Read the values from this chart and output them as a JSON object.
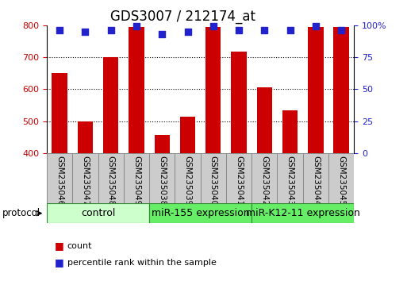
{
  "title": "GDS3007 / 212174_at",
  "samples": [
    "GSM235046",
    "GSM235047",
    "GSM235048",
    "GSM235049",
    "GSM235038",
    "GSM235039",
    "GSM235040",
    "GSM235041",
    "GSM235042",
    "GSM235043",
    "GSM235044",
    "GSM235045"
  ],
  "counts": [
    650,
    500,
    700,
    795,
    458,
    515,
    795,
    718,
    605,
    535,
    795,
    795
  ],
  "percentile_ranks": [
    96,
    95,
    96,
    99,
    93,
    95,
    99,
    96,
    96,
    96,
    99,
    96
  ],
  "groups": [
    {
      "label": "control",
      "start": 0,
      "end": 4,
      "color": "#ccffcc"
    },
    {
      "label": "miR-155 expression",
      "start": 4,
      "end": 8,
      "color": "#66ee66"
    },
    {
      "label": "miR-K12-11 expression",
      "start": 8,
      "end": 12,
      "color": "#66ee66"
    }
  ],
  "ylim_left": [
    400,
    800
  ],
  "ylim_right": [
    0,
    100
  ],
  "yticks_left": [
    400,
    500,
    600,
    700,
    800
  ],
  "yticks_right": [
    0,
    25,
    50,
    75,
    100
  ],
  "bar_color": "#cc0000",
  "dot_color": "#2222cc",
  "grid_color": "#000000",
  "left_tick_color": "#cc0000",
  "right_tick_color": "#2222cc",
  "protocol_label": "protocol",
  "legend_count_label": "count",
  "legend_pct_label": "percentile rank within the sample",
  "title_fontsize": 12,
  "axis_fontsize": 8,
  "tick_fontsize": 8,
  "bar_width": 0.6,
  "dot_size": 40,
  "group_label_fontsize": 9,
  "sample_label_fontsize": 7.5,
  "legend_fontsize": 8,
  "sample_box_color": "#cccccc",
  "sample_box_edge": "#888888"
}
